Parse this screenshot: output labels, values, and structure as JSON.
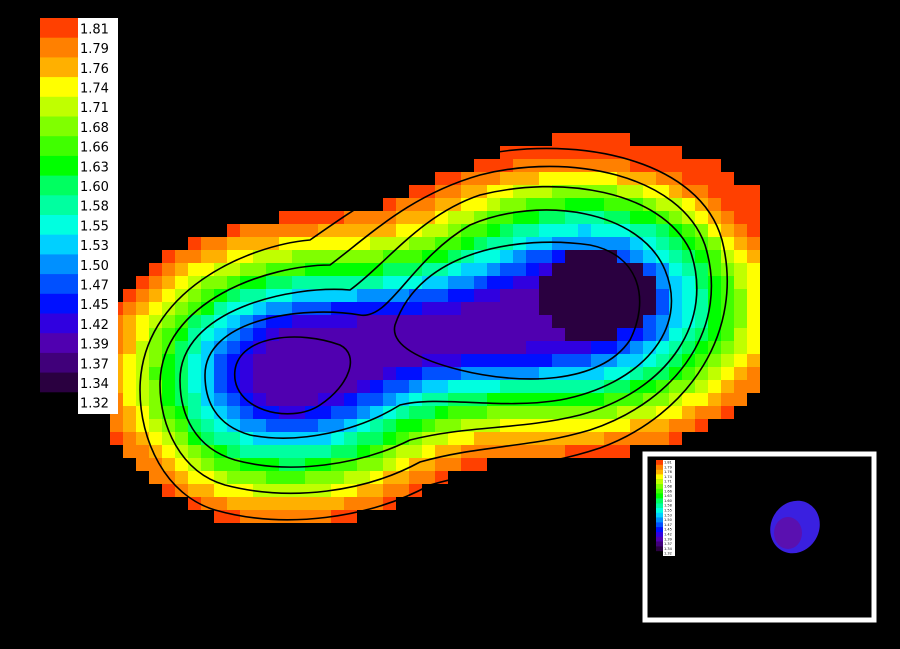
{
  "colorbar": {
    "labels": [
      "1.81",
      "1.79",
      "1.76",
      "1.74",
      "1.71",
      "1.68",
      "1.66",
      "1.63",
      "1.60",
      "1.58",
      "1.55",
      "1.53",
      "1.50",
      "1.47",
      "1.45",
      "1.42",
      "1.39",
      "1.37",
      "1.34",
      "1.32"
    ],
    "colors": [
      "#ff4000",
      "#ff8000",
      "#ffb000",
      "#ffff00",
      "#c0ff00",
      "#80ff00",
      "#40ff00",
      "#00ff00",
      "#00ff60",
      "#00ffa0",
      "#00ffe0",
      "#00d0ff",
      "#0090ff",
      "#0050ff",
      "#0010ff",
      "#3000e0",
      "#5000b0",
      "#40007a",
      "#2a0040",
      "#000000"
    ]
  }
}
